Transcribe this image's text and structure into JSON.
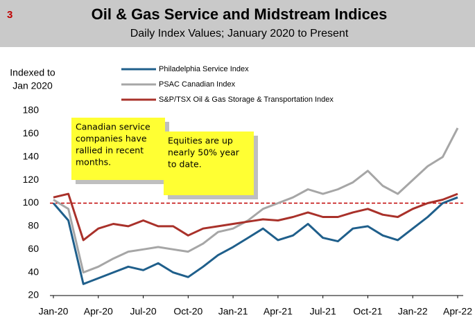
{
  "chart_data": {
    "type": "line",
    "page_number": "3",
    "title": "Oil & Gas Service and Midstream Indices",
    "subtitle": "Daily Index Values; January 2020 to Present",
    "ylabel": [
      "Indexed to",
      "Jan 2020"
    ],
    "categories": [
      "Jan-20",
      null,
      null,
      "Apr-20",
      null,
      null,
      "Jul-20",
      null,
      null,
      "Oct-20",
      null,
      null,
      "Jan-21",
      null,
      null,
      "Apr-21",
      null,
      null,
      "Jul-21",
      null,
      null,
      "Oct-21",
      null,
      null,
      "Jan-22",
      null,
      null,
      "Apr-22"
    ],
    "series": [
      {
        "name": "Philadelphia Service Index",
        "color": "#1f5f8b",
        "values": [
          100,
          85,
          30,
          35,
          40,
          45,
          42,
          48,
          40,
          36,
          45,
          55,
          62,
          70,
          78,
          68,
          72,
          82,
          70,
          67,
          78,
          80,
          72,
          68,
          78,
          88,
          100,
          105
        ]
      },
      {
        "name": "PSAC Canadian Index",
        "color": "#a6a6a6",
        "values": [
          103,
          95,
          40,
          45,
          52,
          58,
          60,
          62,
          60,
          58,
          65,
          75,
          78,
          85,
          95,
          100,
          105,
          112,
          108,
          112,
          118,
          128,
          115,
          108,
          120,
          132,
          140,
          165
        ]
      },
      {
        "name": "S&P/TSX Oil & Gas Storage & Transportation Index",
        "color": "#a9312a",
        "values": [
          105,
          108,
          68,
          78,
          82,
          80,
          85,
          80,
          80,
          72,
          78,
          80,
          82,
          84,
          86,
          85,
          88,
          92,
          88,
          88,
          92,
          95,
          90,
          88,
          95,
          100,
          103,
          108
        ]
      }
    ],
    "ylim": [
      20,
      180
    ],
    "yticks": [
      20,
      40,
      60,
      80,
      100,
      120,
      140,
      160,
      180
    ],
    "reference_line": {
      "value": 100,
      "color": "#c00000"
    },
    "annotations": [
      {
        "lines": [
          "Canadian service",
          "companies have",
          "rallied in recent",
          "months."
        ]
      },
      {
        "lines": [
          "Equities are up",
          "nearly 50% year",
          "to date."
        ]
      }
    ]
  }
}
